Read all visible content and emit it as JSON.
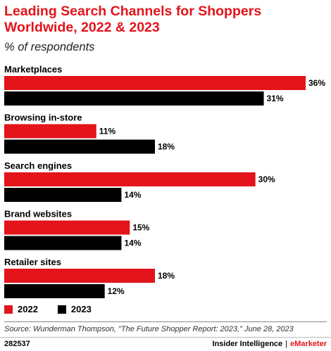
{
  "header": {
    "title": "Leading Search Channels for Shoppers Worldwide, 2022 & 2023",
    "subtitle": "% of respondents"
  },
  "colors": {
    "series_2022": "#e3141b",
    "series_2023": "#000000",
    "title": "#e3141b"
  },
  "chart_data": {
    "type": "bar",
    "orientation": "horizontal",
    "title": "Leading Search Channels for Shoppers Worldwide, 2022 & 2023",
    "subtitle": "% of respondents",
    "categories": [
      "Marketplaces",
      "Browsing in-store",
      "Search engines",
      "Brand websites",
      "Retailer sites"
    ],
    "series": [
      {
        "name": "2022",
        "values": [
          36,
          11,
          30,
          15,
          18
        ],
        "labels": [
          "36%",
          "11%",
          "30%",
          "15%",
          "18%"
        ],
        "color": "#e3141b"
      },
      {
        "name": "2023",
        "values": [
          31,
          18,
          14,
          14,
          12
        ],
        "labels": [
          "31%",
          "18%",
          "14%",
          "14%",
          "12%"
        ],
        "color": "#000000"
      }
    ],
    "xlim": [
      0,
      36
    ],
    "legend": "bottom-left",
    "grid": false
  },
  "legend": {
    "items": [
      "2022",
      "2023"
    ]
  },
  "source": "Source: Wunderman Thompson, \"The Future Shopper Report: 2023,\" June 28, 2023",
  "footer": {
    "chart_id": "282537",
    "brand_primary": "Insider Intelligence",
    "separator": "|",
    "brand_secondary": "eMarketer"
  }
}
